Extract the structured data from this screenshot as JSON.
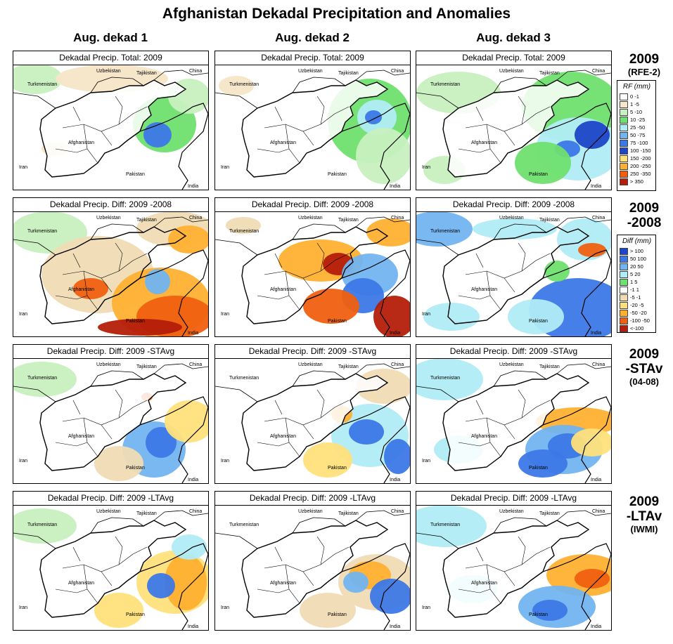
{
  "title": "Afghanistan Dekadal Precipitation and Anomalies",
  "columns": [
    "Aug. dekad 1",
    "Aug. dekad 2",
    "Aug. dekad 3"
  ],
  "rows": [
    {
      "label_big": "2009",
      "label_small": "(RFE-2)",
      "panel_titles": [
        "Dekadal Precip. Total: 2009",
        "Dekadal Precip. Total: 2009",
        "Dekadal Precip. Total: 2009"
      ]
    },
    {
      "label_big": "2009\n-2008",
      "label_small": "",
      "panel_titles": [
        "Dekadal Precip. Diff:  2009 -2008",
        "Dekadal Precip. Diff:  2009 -2008",
        "Dekadal Precip. Diff:  2009 -2008"
      ]
    },
    {
      "label_big": "2009\n-STAv",
      "label_small": "(04-08)",
      "panel_titles": [
        "Dekadal Precip. Diff:  2009 -STAvg",
        "Dekadal Precip. Diff:  2009 -STAvg",
        "Dekadal Precip. Diff:  2009 -STAvg"
      ]
    },
    {
      "label_big": "2009\n-LTAv",
      "label_small": "(IWMI)",
      "panel_titles": [
        "Dekadal Precip. Diff:  2009 -LTAvg",
        "Dekadal Precip. Diff:  2009 -LTAvg",
        "Dekadal Precip. Diff:  2009 -LTAvg"
      ]
    }
  ],
  "country_labels": [
    "Uzbekistan",
    "Tajikistan",
    "China",
    "Turkmenistan",
    "Afghanistan",
    "Iran",
    "Pakistan",
    "India"
  ],
  "legend_rf": {
    "title": "RF (mm)",
    "items": [
      {
        "label": "0 -1",
        "color": "#ffffff"
      },
      {
        "label": "1 -5",
        "color": "#f5e6c8"
      },
      {
        "label": "5 -10",
        "color": "#c8f0c0"
      },
      {
        "label": "10 -25",
        "color": "#6fe06f"
      },
      {
        "label": "25 -50",
        "color": "#b0ecf5"
      },
      {
        "label": "50 -75",
        "color": "#72b4f0"
      },
      {
        "label": "75 -100",
        "color": "#3c78e6"
      },
      {
        "label": "100 -150",
        "color": "#1e46c8"
      },
      {
        "label": "150 -200",
        "color": "#ffe07a"
      },
      {
        "label": "200 -250",
        "color": "#ffb030"
      },
      {
        "label": "250 -350",
        "color": "#f06010"
      },
      {
        "label": "> 350",
        "color": "#b41e0a"
      }
    ]
  },
  "legend_diff": {
    "title": "Diff (mm)",
    "items": [
      {
        "label": "> 100",
        "color": "#1e46c8"
      },
      {
        "label": "50 100",
        "color": "#3c78e6"
      },
      {
        "label": "20 50",
        "color": "#72b4f0"
      },
      {
        "label": "5 20",
        "color": "#b0ecf5"
      },
      {
        "label": "1 5",
        "color": "#6fe06f"
      },
      {
        "label": "-1 1",
        "color": "#ffffff"
      },
      {
        "label": "-5 -1",
        "color": "#f0dcb4"
      },
      {
        "label": "-20 -5",
        "color": "#ffe07a"
      },
      {
        "label": "-50 -20",
        "color": "#ffb030"
      },
      {
        "label": "-100 -50",
        "color": "#f06010"
      },
      {
        "label": "<-100",
        "color": "#b41e0a"
      }
    ]
  }
}
